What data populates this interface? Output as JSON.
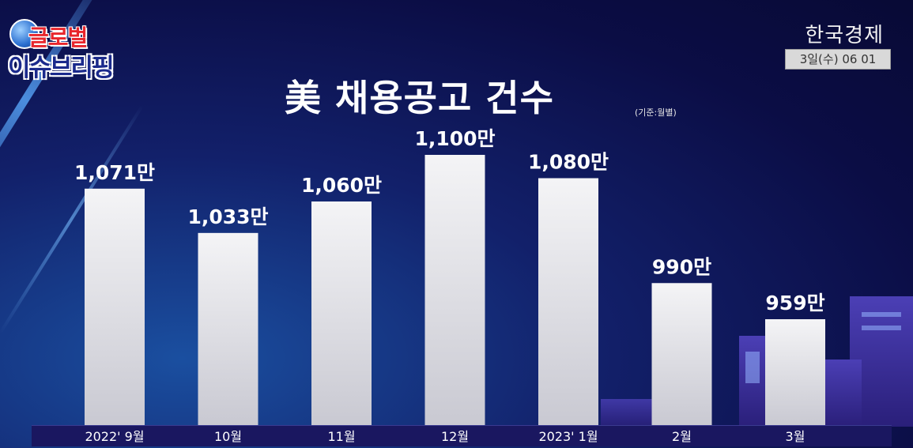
{
  "logo": {
    "line1": "글로벌",
    "line2": "이슈브리핑"
  },
  "broadcaster": {
    "name": "한국경제",
    "date": "3일(수) 06 01"
  },
  "title": "美 채용공고 건수",
  "basis": "(기준:월별)",
  "chart_data": {
    "type": "bar",
    "title": "美 채용공고 건수",
    "subtitle": "(기준:월별)",
    "categories": [
      "2022' 9월",
      "10월",
      "11월",
      "12월",
      "2023' 1월",
      "2월",
      "3월"
    ],
    "values": [
      1071,
      1033,
      1060,
      1100,
      1080,
      990,
      959
    ],
    "value_labels": [
      "1,071만",
      "1,033만",
      "1,060만",
      "1,100만",
      "1,080만",
      "990만",
      "959만"
    ],
    "unit": "만",
    "bar_color": "#e6e6ea"
  }
}
